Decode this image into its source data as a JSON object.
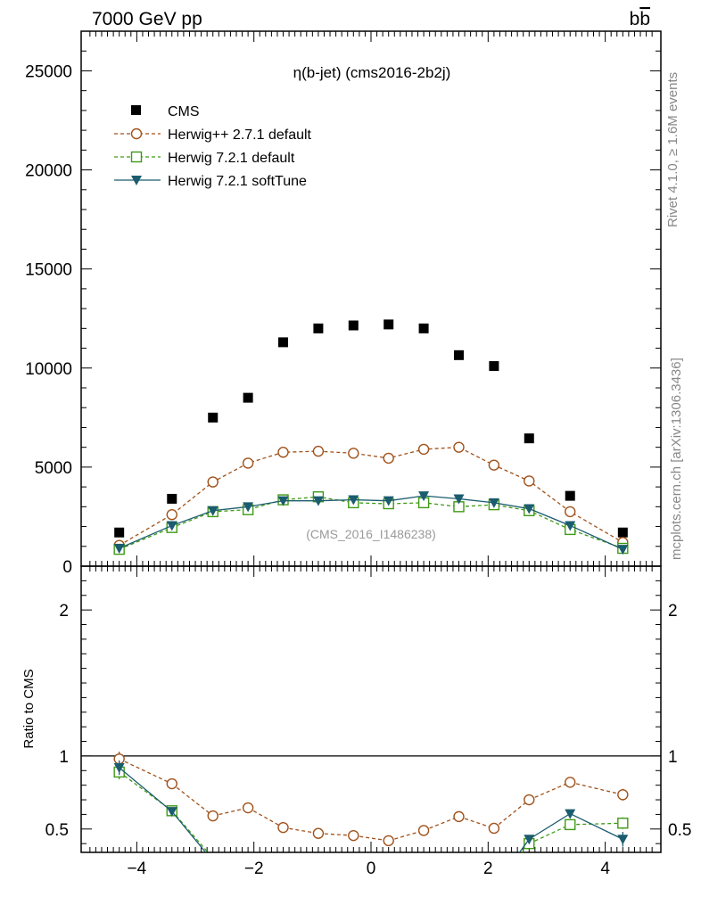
{
  "header": {
    "left_title": "7000 GeV pp",
    "right_title": "b",
    "right_title_bar": "b"
  },
  "right_labels": {
    "rivet": "Rivet 4.1.0, ≥ 1.6M events",
    "mcplots": "mcplots.cern.ch [arXiv:1306.3436]"
  },
  "chart_data": {
    "type": "scatter",
    "title": "η(b-jet) (cms2016-2b2j)",
    "watermark": "(CMS_2016_I1486238)",
    "x": [
      -4.3,
      -3.4,
      -2.7,
      -2.1,
      -1.5,
      -0.9,
      -0.3,
      0.3,
      0.9,
      1.5,
      2.1,
      2.7,
      3.4,
      4.3
    ],
    "xlim": [
      -4.95,
      4.95
    ],
    "ylim": [
      0,
      27000
    ],
    "yticks": [
      0,
      5000,
      10000,
      15000,
      20000,
      25000
    ],
    "ytick_labels": [
      "0",
      "5000",
      "10000",
      "15000",
      "20000",
      "25000"
    ],
    "xticks": [
      -4,
      -2,
      0,
      2,
      4
    ],
    "xtick_labels": [
      "−4",
      "−2",
      "0",
      "2",
      "4"
    ],
    "series": [
      {
        "name": "CMS",
        "color": "#000000",
        "marker": "square-filled",
        "line": "none",
        "values": [
          1700,
          3400,
          7500,
          8500,
          11300,
          12000,
          12150,
          12200,
          12000,
          10650,
          10100,
          6450,
          3550,
          1700
        ]
      },
      {
        "name": "Herwig++ 2.7.1 default",
        "color": "#a0521b",
        "marker": "circle-open",
        "line": "dashed",
        "values": [
          1050,
          2600,
          4250,
          5200,
          5750,
          5800,
          5700,
          5450,
          5900,
          6000,
          5100,
          4300,
          2750,
          1200
        ]
      },
      {
        "name": "Herwig 7.2.1 default",
        "color": "#3f9a14",
        "marker": "square-open",
        "line": "dashed",
        "values": [
          850,
          1950,
          2750,
          2850,
          3350,
          3500,
          3200,
          3150,
          3200,
          3000,
          3100,
          2800,
          1850,
          900
        ]
      },
      {
        "name": "Herwig 7.2.1 softTune",
        "color": "#1b5c6e",
        "marker": "triangle-down-filled",
        "line": "solid",
        "values": [
          900,
          2050,
          2800,
          3000,
          3300,
          3300,
          3350,
          3300,
          3550,
          3400,
          3200,
          2900,
          2050,
          850
        ]
      }
    ],
    "ratio": {
      "ylabel": "Ratio to CMS",
      "ylim": [
        0.34,
        2.3
      ],
      "yticks": [
        0.5,
        1,
        2
      ],
      "ytick_labels": [
        "0.5",
        "1",
        "2"
      ],
      "series": [
        {
          "name": "Herwig++ 2.7.1 default",
          "values": [
            0.98,
            0.81,
            0.59,
            0.645,
            0.51,
            0.47,
            0.455,
            0.42,
            0.49,
            0.585,
            0.505,
            0.7,
            0.82,
            0.735
          ],
          "err": [
            0.05,
            0.03,
            0.025,
            0.025,
            0.02,
            0.02,
            0.02,
            0.02,
            0.02,
            0.025,
            0.025,
            0.03,
            0.03,
            0.04
          ]
        },
        {
          "name": "Herwig 7.2.1 default",
          "values": [
            0.89,
            0.625,
            0.3,
            null,
            null,
            null,
            null,
            null,
            null,
            null,
            null,
            0.4,
            0.53,
            0.54
          ],
          "err": [
            0.05,
            0.02,
            0.02,
            null,
            null,
            null,
            null,
            null,
            null,
            null,
            null,
            0.02,
            0.025,
            0.04
          ]
        },
        {
          "name": "Herwig 7.2.1 softTune",
          "values": [
            0.92,
            0.62,
            0.28,
            null,
            null,
            null,
            null,
            null,
            null,
            null,
            null,
            0.43,
            0.605,
            0.43
          ],
          "err": [
            0.05,
            0.02,
            0.02,
            null,
            null,
            null,
            null,
            null,
            null,
            null,
            null,
            0.02,
            0.025,
            0.05
          ]
        }
      ]
    }
  }
}
